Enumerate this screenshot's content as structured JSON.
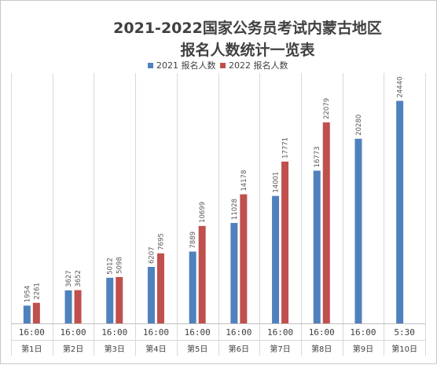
{
  "chart_data": {
    "type": "bar",
    "title_lines": [
      "2021-2022国家公务员考试内蒙古地区",
      "报名人数统计一览表"
    ],
    "categories": [
      {
        "time": "16:00",
        "day": "第1日"
      },
      {
        "time": "16:00",
        "day": "第2日"
      },
      {
        "time": "16:00",
        "day": "第3日"
      },
      {
        "time": "16:00",
        "day": "第4日"
      },
      {
        "time": "16:00",
        "day": "第5日"
      },
      {
        "time": "16:00",
        "day": "第6日"
      },
      {
        "time": "16:00",
        "day": "第7日"
      },
      {
        "time": "16:00",
        "day": "第8日"
      },
      {
        "time": "16:00",
        "day": "第9日"
      },
      {
        "time": "5:30",
        "day": "第10日"
      }
    ],
    "series": [
      {
        "name": "2021 报名人数",
        "color": "#4f81bd",
        "values": [
          1954,
          3627,
          5012,
          6207,
          7889,
          11028,
          14001,
          16773,
          20280,
          24440
        ]
      },
      {
        "name": "2022 报名人数",
        "color": "#c0504d",
        "values": [
          2261,
          3652,
          5098,
          7695,
          10699,
          14178,
          17771,
          22079,
          null,
          null
        ]
      }
    ],
    "legend_position": "top",
    "ylim": [
      0,
      27500
    ],
    "vertical_gridlines": true,
    "data_labels": true,
    "data_label_rotation": "vertical"
  }
}
